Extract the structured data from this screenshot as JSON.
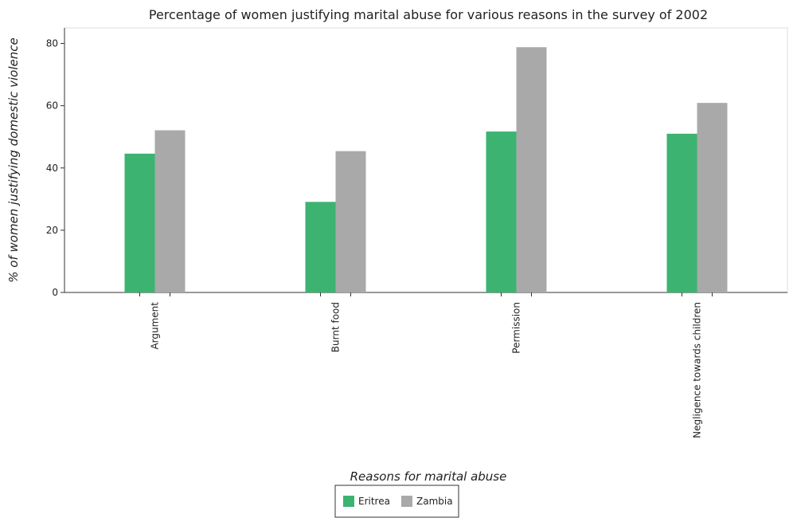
{
  "chart_data": {
    "type": "bar",
    "title": "Percentage of women justifying marital abuse for various reasons in the survey of 2002",
    "xlabel": "Reasons for marital abuse",
    "ylabel": "% of women justifying domestic violence",
    "categories": [
      "Argument",
      "Burnt food",
      "Permission",
      "Negligence towards children"
    ],
    "series": [
      {
        "name": "Eritrea",
        "color": "#3cb371",
        "values": [
          44.6,
          29.1,
          51.7,
          51.0
        ]
      },
      {
        "name": "Zambia",
        "color": "#a9a9a9",
        "values": [
          52.1,
          45.4,
          78.8,
          60.9
        ]
      }
    ],
    "ylim": [
      0,
      85
    ],
    "yticks": [
      0,
      20,
      40,
      60,
      80
    ],
    "grid": false,
    "legend_position": "bottom-center"
  }
}
